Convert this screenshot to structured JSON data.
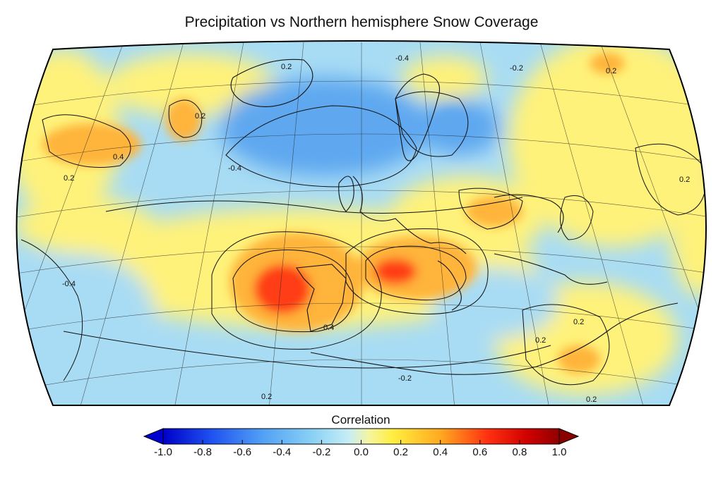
{
  "title": "Precipitation vs Northern hemisphere Snow Coverage",
  "map": {
    "projection": "conic (Lambert-style) map of the North Atlantic, Europe and North Africa",
    "contour_labels": [
      {
        "id": "a",
        "text": "-0.4"
      },
      {
        "id": "b",
        "text": "-0.2"
      },
      {
        "id": "c",
        "text": "0.2"
      },
      {
        "id": "d",
        "text": "0.2"
      },
      {
        "id": "e",
        "text": "0.2"
      },
      {
        "id": "f",
        "text": "0.4"
      },
      {
        "id": "g",
        "text": "-0.4"
      },
      {
        "id": "h",
        "text": "0.2"
      },
      {
        "id": "i",
        "text": "0.4"
      },
      {
        "id": "j",
        "text": "-0.4"
      },
      {
        "id": "k",
        "text": "0.2"
      },
      {
        "id": "l",
        "text": "0.2"
      },
      {
        "id": "m",
        "text": "0.2"
      },
      {
        "id": "n",
        "text": "0.2"
      },
      {
        "id": "o",
        "text": "-0.2"
      },
      {
        "id": "p",
        "text": "0.2"
      }
    ],
    "colors": {
      "neg_strong": "#1a3cd8",
      "neg_mid": "#5fa8f0",
      "neg_weak": "#a8dcf4",
      "neutral": "#dff2f2",
      "pos_weak": "#fff27a",
      "pos_mid": "#ffb43a",
      "pos_strong": "#ff3c14",
      "pos_max": "#c00000"
    }
  },
  "colorbar": {
    "label": "Correlation",
    "min": -1.0,
    "max": 1.0,
    "extend": "both",
    "ticks": [
      "-1.0",
      "-0.8",
      "-0.6",
      "-0.4",
      "-0.2",
      "0.0",
      "0.2",
      "0.4",
      "0.6",
      "0.8",
      "1.0"
    ]
  }
}
